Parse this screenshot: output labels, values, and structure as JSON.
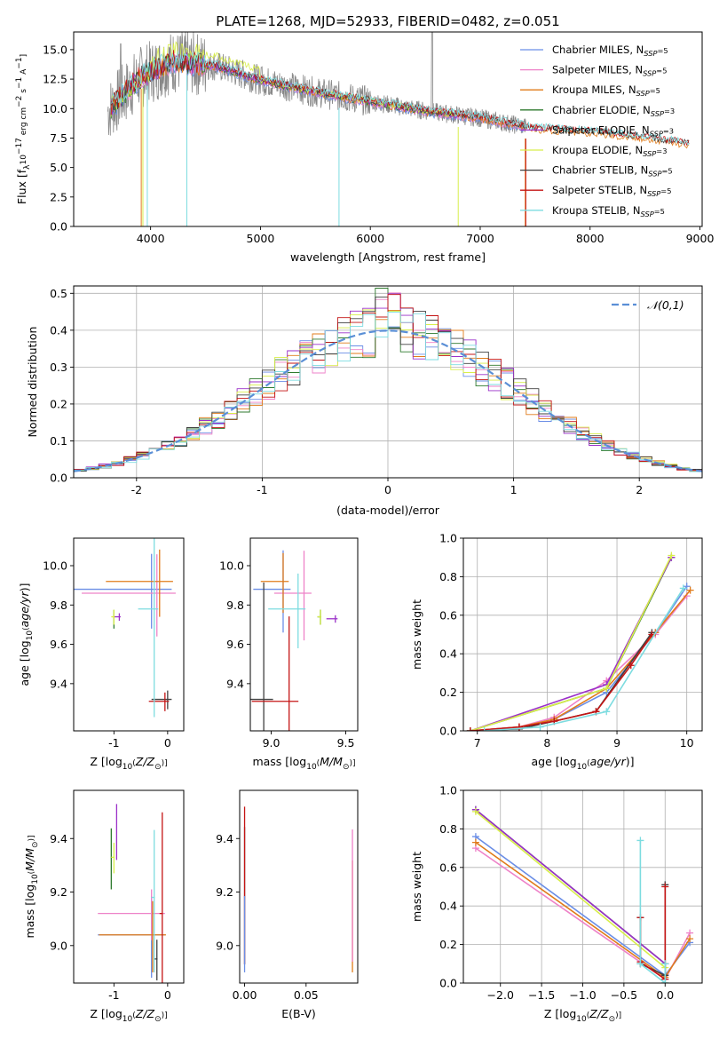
{
  "figure_title": "PLATE=1268, MJD=52933, FIBERID=0482, z=0.051",
  "colors": {
    "Chabrier MILES": "#6b8ee6",
    "Salpeter MILES": "#ee82c8",
    "Kroupa MILES": "#e07b1a",
    "Chabrier ELODIE": "#2f7a2f",
    "Salpeter ELODIE": "#9b30c9",
    "Kroupa ELODIE": "#d8ee4a",
    "Chabrier STELIB": "#404040",
    "Salpeter STELIB": "#c41414",
    "Kroupa STELIB": "#7ddce0",
    "data": "#888888",
    "gaussian": "#5a8fd6"
  },
  "chart_data": [
    {
      "type": "line",
      "title": "PLATE=1268, MJD=52933, FIBERID=0482, z=0.051",
      "xlabel": "wavelength [Angstrom, rest frame]",
      "ylabel_parts": [
        "Flux [f",
        "λ",
        "10",
        "−17",
        " erg cm",
        "−2",
        " s",
        "−1",
        " A",
        "−1",
        "]"
      ],
      "xlim": [
        3300,
        9020
      ],
      "ylim": [
        0,
        16.5
      ],
      "xticks": [
        4000,
        5000,
        6000,
        7000,
        8000,
        9000
      ],
      "yticks": [
        0.0,
        2.5,
        5.0,
        7.5,
        10.0,
        12.5,
        15.0
      ],
      "x_range_data": [
        3610,
        7420
      ],
      "x_range_models": [
        3640,
        8900
      ],
      "continuum": {
        "x": [
          3610,
          3900,
          4200,
          4600,
          5000,
          5500,
          6000,
          6500,
          7000,
          7500,
          8000,
          8500,
          8900
        ],
        "y": [
          9.8,
          12.6,
          14.0,
          13.6,
          12.4,
          11.4,
          10.6,
          9.8,
          9.2,
          8.3,
          8.0,
          7.5,
          7.0
        ]
      },
      "grid": false,
      "legend_position": "top-right",
      "legend": [
        {
          "prefix": "Chabrier MILES, N",
          "sub": "SSP",
          "suffix": "=5"
        },
        {
          "prefix": "Salpeter MILES, N",
          "sub": "SSP",
          "suffix": "=5"
        },
        {
          "prefix": "Kroupa MILES, N",
          "sub": "SSP",
          "suffix": "=5"
        },
        {
          "prefix": "Chabrier ELODIE, N",
          "sub": "SSP",
          "suffix": "=3"
        },
        {
          "prefix": "Salpeter ELODIE, N",
          "sub": "SSP",
          "suffix": "=3"
        },
        {
          "prefix": "Kroupa ELODIE, N",
          "sub": "SSP",
          "suffix": "=3"
        },
        {
          "prefix": "Chabrier STELIB, N",
          "sub": "SSP",
          "suffix": "=5"
        },
        {
          "prefix": "Salpeter STELIB, N",
          "sub": "SSP",
          "suffix": "=5"
        },
        {
          "prefix": "Kroupa STELIB, N",
          "sub": "SSP",
          "suffix": "=5"
        }
      ]
    },
    {
      "type": "step",
      "xlabel": "(data-model)/error",
      "ylabel": "Normed distribution",
      "xlim": [
        -2.5,
        2.5
      ],
      "ylim": [
        0,
        0.52
      ],
      "xticks": [
        -2,
        -1,
        0,
        1,
        2
      ],
      "yticks": [
        0.0,
        0.1,
        0.2,
        0.3,
        0.4,
        0.5
      ],
      "grid": true,
      "legend_position": "top-right",
      "legend": "𝒩(0,1)"
    },
    {
      "type": "errorbar",
      "xlabel": "Z [log10(Z/Z⊙)]",
      "ylabel": "age  [log10(age/yr)]",
      "xlim": [
        -1.75,
        0.3
      ],
      "ylim": [
        9.16,
        10.14
      ],
      "xticks": [
        -1,
        0
      ],
      "yticks": [
        9.4,
        9.6,
        9.8,
        10.0
      ],
      "points": [
        {
          "model": "Chabrier MILES",
          "x": -0.3,
          "y": 9.88,
          "xerr": 1.5,
          "yerr": 0.2
        },
        {
          "model": "Salpeter MILES",
          "x": -0.2,
          "y": 9.86,
          "xerr": 1.4,
          "yerr": 0.22
        },
        {
          "model": "Kroupa MILES",
          "x": -0.15,
          "y": 9.92,
          "xerr": 1.0,
          "yerr": 0.18
        },
        {
          "model": "Chabrier ELODIE",
          "x": -1.0,
          "y": 9.73,
          "xerr": 0.0,
          "yerr": 0.05
        },
        {
          "model": "Salpeter ELODIE",
          "x": -0.9,
          "y": 9.74,
          "xerr": 0.1,
          "yerr": 0.02
        },
        {
          "model": "Kroupa ELODIE",
          "x": -1.0,
          "y": 9.74,
          "xerr": 0.05,
          "yerr": 0.04
        },
        {
          "model": "Chabrier STELIB",
          "x": 0.0,
          "y": 9.32,
          "xerr": 0.3,
          "yerr": 0.05
        },
        {
          "model": "Salpeter STELIB",
          "x": -0.05,
          "y": 9.31,
          "xerr": 0.3,
          "yerr": 0.05
        },
        {
          "model": "Kroupa STELIB",
          "x": -0.25,
          "y": 9.78,
          "xerr": 0.3,
          "yerr": 0.55
        }
      ]
    },
    {
      "type": "errorbar",
      "xlabel": "mass [log10(M/M⊙)]",
      "xlim": [
        8.86,
        9.58
      ],
      "ylim": [
        9.16,
        10.14
      ],
      "xticks": [
        9.0,
        9.5
      ],
      "yticks": [
        9.4,
        9.6,
        9.8,
        10.0
      ],
      "points": [
        {
          "model": "Chabrier MILES",
          "x": 9.08,
          "y": 9.88,
          "xerr": 0.2,
          "yerr": 0.22
        },
        {
          "model": "Salpeter MILES",
          "x": 9.22,
          "y": 9.86,
          "xerr": 0.2,
          "yerr": 0.24
        },
        {
          "model": "Kroupa MILES",
          "x": 9.08,
          "y": 9.92,
          "xerr": 0.15,
          "yerr": 0.16
        },
        {
          "model": "Chabrier ELODIE",
          "x": 9.33,
          "y": 9.74,
          "xerr": 0.02,
          "yerr": 0.04
        },
        {
          "model": "Salpeter ELODIE",
          "x": 9.43,
          "y": 9.73,
          "xerr": 0.06,
          "yerr": 0.02
        },
        {
          "model": "Kroupa ELODIE",
          "x": 9.33,
          "y": 9.74,
          "xerr": 0.02,
          "yerr": 0.04
        },
        {
          "model": "Chabrier STELIB",
          "x": 8.95,
          "y": 9.32,
          "xerr": 0.25,
          "yerr": 0.66
        },
        {
          "model": "Salpeter STELIB",
          "x": 9.12,
          "y": 9.31,
          "xerr": 0.25,
          "yerr": 0.48
        },
        {
          "model": "Kroupa STELIB",
          "x": 9.18,
          "y": 9.78,
          "xerr": 0.2,
          "yerr": 0.2
        }
      ]
    },
    {
      "type": "line",
      "xlabel": "age  [log10(age/yr)]",
      "ylabel": "mass weight",
      "xlim": [
        6.8,
        10.22
      ],
      "ylim": [
        0.0,
        1.0
      ],
      "xticks": [
        7,
        8,
        9,
        10
      ],
      "yticks": [
        0.0,
        0.2,
        0.4,
        0.6,
        0.8,
        1.0
      ],
      "grid": true,
      "series": [
        {
          "model": "Chabrier MILES",
          "x": [
            6.9,
            7.6,
            8.1,
            8.85,
            9.55,
            10.0
          ],
          "y": [
            0.0,
            0.02,
            0.06,
            0.2,
            0.51,
            0.75
          ]
        },
        {
          "model": "Salpeter MILES",
          "x": [
            6.9,
            7.6,
            8.1,
            8.85,
            9.55,
            10.0
          ],
          "y": [
            0.0,
            0.02,
            0.07,
            0.26,
            0.5,
            0.7
          ]
        },
        {
          "model": "Kroupa MILES",
          "x": [
            6.9,
            7.6,
            8.1,
            8.85,
            9.55,
            10.05
          ],
          "y": [
            0.0,
            0.02,
            0.06,
            0.22,
            0.51,
            0.73
          ]
        },
        {
          "model": "Chabrier ELODIE",
          "x": [
            6.9,
            8.85,
            9.78
          ],
          "y": [
            0.0,
            0.22,
            0.9
          ]
        },
        {
          "model": "Salpeter ELODIE",
          "x": [
            6.9,
            8.85,
            9.78
          ],
          "y": [
            0.0,
            0.24,
            0.9
          ]
        },
        {
          "model": "Kroupa ELODIE",
          "x": [
            6.9,
            8.85,
            9.78
          ],
          "y": [
            0.0,
            0.22,
            0.91
          ]
        },
        {
          "model": "Chabrier STELIB",
          "x": [
            6.9,
            7.6,
            8.1,
            8.7,
            9.5
          ],
          "y": [
            0.0,
            0.01,
            0.05,
            0.1,
            0.51
          ]
        },
        {
          "model": "Salpeter STELIB",
          "x": [
            6.9,
            7.6,
            8.1,
            8.7,
            9.2,
            9.5
          ],
          "y": [
            0.0,
            0.02,
            0.05,
            0.1,
            0.34,
            0.5
          ]
        },
        {
          "model": "Kroupa STELIB",
          "x": [
            7.1,
            7.9,
            8.85,
            9.95
          ],
          "y": [
            0.0,
            0.02,
            0.1,
            0.74
          ]
        }
      ]
    },
    {
      "type": "errorbar",
      "xlabel": "Z [log10(Z/Z⊙)]",
      "ylabel": "mass [log10(M/M⊙)]",
      "xlim": [
        -1.75,
        0.3
      ],
      "ylim": [
        8.86,
        9.58
      ],
      "xticks": [
        -1,
        0
      ],
      "yticks": [
        9.0,
        9.2,
        9.4
      ],
      "points": [
        {
          "model": "Chabrier MILES",
          "x": -0.3,
          "y": 9.04,
          "xerr": 1.0,
          "yerr": 0.16
        },
        {
          "model": "Salpeter MILES",
          "x": -0.3,
          "y": 9.12,
          "xerr": 1.0,
          "yerr": 0.1
        },
        {
          "model": "Kroupa MILES",
          "x": -0.28,
          "y": 9.04,
          "xerr": 1.0,
          "yerr": 0.14
        },
        {
          "model": "Chabrier ELODIE",
          "x": -1.05,
          "y": 9.33,
          "xerr": 0.0,
          "yerr": 0.12
        },
        {
          "model": "Salpeter ELODIE",
          "x": -0.95,
          "y": 9.43,
          "xerr": 0.0,
          "yerr": 0.11
        },
        {
          "model": "Kroupa ELODIE",
          "x": -1.0,
          "y": 9.33,
          "xerr": 0.05,
          "yerr": 0.06
        },
        {
          "model": "Chabrier STELIB",
          "x": -0.2,
          "y": 8.95,
          "xerr": 0.05,
          "yerr": 0.08
        },
        {
          "model": "Salpeter STELIB",
          "x": -0.1,
          "y": 9.12,
          "xerr": 0.05,
          "yerr": 0.42
        },
        {
          "model": "Kroupa STELIB",
          "x": -0.25,
          "y": 9.18,
          "xerr": 0.05,
          "yerr": 0.28
        }
      ]
    },
    {
      "type": "errorbar",
      "xlabel": "E(B-V)",
      "xlim": [
        -0.004,
        0.092
      ],
      "ylim": [
        8.86,
        9.58
      ],
      "xticks": [
        0.0,
        0.05
      ],
      "yticks": [
        9.0,
        9.2,
        9.4
      ],
      "points": [
        {
          "model": "Chabrier STELIB",
          "x": 0.0,
          "y": 9.2,
          "yerr": 0.27
        },
        {
          "model": "Salpeter STELIB",
          "x": 0.0,
          "y": 9.24,
          "yerr": 0.31
        },
        {
          "model": "Chabrier MILES",
          "x": 0.0,
          "y": 9.05,
          "yerr": 0.15
        },
        {
          "model": "Kroupa MILES",
          "x": 0.0877,
          "y": 9.12,
          "yerr": 0.22
        },
        {
          "model": "Salpeter MILES",
          "x": 0.0877,
          "y": 9.2,
          "yerr": 0.26
        }
      ]
    },
    {
      "type": "line",
      "xlabel": "Z [log10(Z/Z⊙)]",
      "ylabel": "mass weight",
      "xlim": [
        -2.45,
        0.45
      ],
      "ylim": [
        0.0,
        1.0
      ],
      "xticks": [
        -2.0,
        -1.5,
        -1.0,
        -0.5,
        0.0
      ],
      "yticks": [
        0.0,
        0.2,
        0.4,
        0.6,
        0.8,
        1.0
      ],
      "grid": true,
      "series": [
        {
          "model": "Chabrier MILES",
          "x": [
            -2.3,
            0.0,
            0.3
          ],
          "y": [
            0.76,
            0.04,
            0.21
          ]
        },
        {
          "model": "Salpeter MILES",
          "x": [
            -2.3,
            0.0,
            0.3
          ],
          "y": [
            0.7,
            0.02,
            0.26
          ]
        },
        {
          "model": "Kroupa MILES",
          "x": [
            -2.3,
            0.0,
            0.3
          ],
          "y": [
            0.73,
            0.03,
            0.23
          ]
        },
        {
          "model": "Chabrier ELODIE",
          "x": [
            -2.3,
            0.0,
            0.0
          ],
          "y": [
            0.9,
            0.1,
            0.0
          ]
        },
        {
          "model": "Salpeter ELODIE",
          "x": [
            -2.3,
            0.0
          ],
          "y": [
            0.9,
            0.1
          ]
        },
        {
          "model": "Kroupa ELODIE",
          "x": [
            -2.3,
            0.0
          ],
          "y": [
            0.89,
            0.08
          ]
        },
        {
          "model": "Chabrier STELIB",
          "x": [
            -0.3,
            -0.3,
            0.0,
            0.0
          ],
          "y": [
            0.34,
            0.1,
            0.04,
            0.51
          ]
        },
        {
          "model": "Salpeter STELIB",
          "x": [
            -0.3,
            -0.3,
            0.0,
            0.0
          ],
          "y": [
            0.34,
            0.11,
            0.02,
            0.5
          ]
        },
        {
          "model": "Kroupa STELIB",
          "x": [
            -0.3,
            -0.3,
            0.0,
            0.0
          ],
          "y": [
            0.74,
            0.1,
            0.0,
            0.1
          ]
        }
      ]
    }
  ]
}
